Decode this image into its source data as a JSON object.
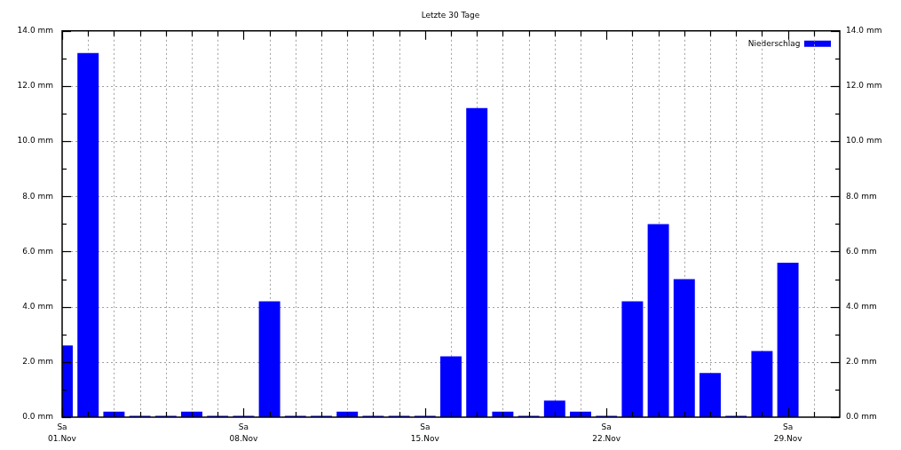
{
  "chart_data": {
    "type": "bar",
    "title": "Letzte 30 Tage",
    "x": [
      "--11-01",
      "--11-02",
      "--11-03",
      "--11-04",
      "--11-05",
      "--11-06",
      "--11-07",
      "--11-08",
      "--11-09",
      "--11-10",
      "--11-11",
      "--11-12",
      "--11-13",
      "--11-14",
      "--11-15",
      "--11-16",
      "--11-17",
      "--11-18",
      "--11-19",
      "--11-20",
      "--11-21",
      "--11-22",
      "--11-23",
      "--11-24",
      "--11-25",
      "--11-26",
      "--11-27",
      "--11-28",
      "--11-29"
    ],
    "series": [
      {
        "name": "Niederschlag",
        "color": "#0000ff",
        "values": [
          2.6,
          13.2,
          0.2,
          0,
          0,
          0.2,
          0,
          0,
          4.2,
          0,
          0,
          0.2,
          0,
          0,
          0,
          2.2,
          11.2,
          0.2,
          0,
          0.6,
          0.2,
          0,
          4.2,
          7,
          5,
          1.6,
          0,
          2.4,
          5.6
        ]
      }
    ],
    "xlim": [
      "--11-01",
      "--12-01"
    ],
    "xticks": [
      {
        "value": "--11-01",
        "label": "Sa 01.Nov"
      },
      {
        "value": "--11-02",
        "label": null
      },
      {
        "value": "--11-03",
        "label": null
      },
      {
        "value": "--11-04",
        "label": null
      },
      {
        "value": "--11-05",
        "label": null
      },
      {
        "value": "--11-06",
        "label": null
      },
      {
        "value": "--11-07",
        "label": null
      },
      {
        "value": "--11-08",
        "label": "Sa 08.Nov"
      },
      {
        "value": "--11-09",
        "label": null
      },
      {
        "value": "--11-10",
        "label": null
      },
      {
        "value": "--11-11",
        "label": null
      },
      {
        "value": "--11-12",
        "label": null
      },
      {
        "value": "--11-13",
        "label": null
      },
      {
        "value": "--11-14",
        "label": null
      },
      {
        "value": "--11-15",
        "label": "Sa 15.Nov"
      },
      {
        "value": "--11-16",
        "label": null
      },
      {
        "value": "--11-17",
        "label": null
      },
      {
        "value": "--11-18",
        "label": null
      },
      {
        "value": "--11-19",
        "label": null
      },
      {
        "value": "--11-20",
        "label": null
      },
      {
        "value": "--11-21",
        "label": null
      },
      {
        "value": "--11-22",
        "label": "Sa 22.Nov"
      },
      {
        "value": "--11-23",
        "label": null
      },
      {
        "value": "--11-24",
        "label": null
      },
      {
        "value": "--11-25",
        "label": null
      },
      {
        "value": "--11-26",
        "label": null
      },
      {
        "value": "--11-27",
        "label": null
      },
      {
        "value": "--11-28",
        "label": null
      },
      {
        "value": "--11-29",
        "label": "Sa 29.Nov"
      },
      {
        "value": "--11-30",
        "label": null
      }
    ],
    "ylim": [
      0,
      14
    ],
    "yticks": [
      {
        "value": 0,
        "label": "0.0 mm"
      },
      {
        "value": 1,
        "label": null
      },
      {
        "value": 2,
        "label": "2.0 mm"
      },
      {
        "value": 3,
        "label": null
      },
      {
        "value": 4,
        "label": "4.0 mm"
      },
      {
        "value": 5,
        "label": null
      },
      {
        "value": 6,
        "label": "6.0 mm"
      },
      {
        "value": 7,
        "label": null
      },
      {
        "value": 8,
        "label": "8.0 mm"
      },
      {
        "value": 9,
        "label": null
      },
      {
        "value": 10,
        "label": "10.0 mm"
      },
      {
        "value": 11,
        "label": null
      },
      {
        "value": 12,
        "label": "12.0 mm"
      },
      {
        "value": 13,
        "label": null
      },
      {
        "value": 14,
        "label": "14.0 mm"
      }
    ],
    "y2lim": [
      0,
      14
    ],
    "y2ticks": [
      {
        "value": 0,
        "label": "0.0 mm"
      },
      {
        "value": 1,
        "label": null
      },
      {
        "value": 2,
        "label": "2.0 mm"
      },
      {
        "value": 3,
        "label": null
      },
      {
        "value": 4,
        "label": "4.0 mm"
      },
      {
        "value": 5,
        "label": null
      },
      {
        "value": 6,
        "label": "6.0 mm"
      },
      {
        "value": 7,
        "label": null
      },
      {
        "value": 8,
        "label": "8.0 mm"
      },
      {
        "value": 9,
        "label": null
      },
      {
        "value": 10,
        "label": "10.0 mm"
      },
      {
        "value": 11,
        "label": null
      },
      {
        "value": 12,
        "label": "12.0 mm"
      },
      {
        "value": 13,
        "label": null
      },
      {
        "value": 14,
        "label": "14.0 mm"
      }
    ],
    "grid": true,
    "legend": "top right"
  }
}
